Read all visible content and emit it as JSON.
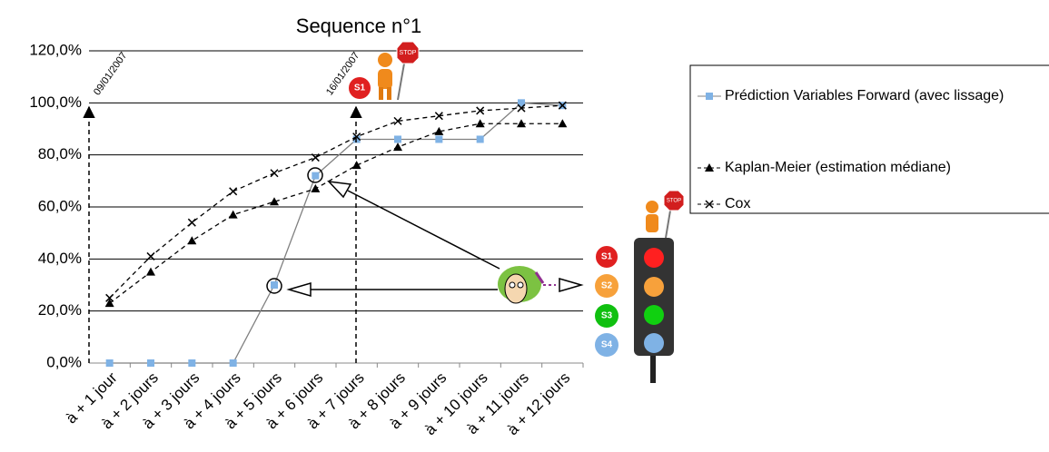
{
  "chart_data": {
    "type": "line",
    "title": "Sequence n°1",
    "categories": [
      "à + 1 jour",
      "à + 2 jours",
      "à + 3 jours",
      "à + 4 jours",
      "à + 5 jours",
      "à + 6 jours",
      "à + 7 jours",
      "à + 8 jours",
      "à + 9 jours",
      "à + 10 jours",
      "à + 11 jours",
      "à + 12 jours"
    ],
    "series": [
      {
        "name": "Prédiction Variables Forward (avec lissage)",
        "color": "#7fb2e5",
        "line_color": "#808080",
        "line_style": "solid",
        "marker": "square",
        "values": [
          0,
          0,
          0,
          0,
          30,
          72,
          86,
          86,
          86,
          86,
          100,
          99
        ]
      },
      {
        "name": "Kaplan-Meier (estimation médiane)",
        "color": "#000000",
        "line_color": "#000000",
        "line_style": "dashed",
        "marker": "triangle",
        "values": [
          23,
          35,
          47,
          57,
          62,
          67,
          76,
          83,
          89,
          92,
          92,
          92
        ]
      },
      {
        "name": "Cox",
        "color": "#000000",
        "line_color": "#000000",
        "line_style": "dashed",
        "marker": "x",
        "values": [
          25,
          41,
          54,
          66,
          73,
          79,
          87,
          93,
          95,
          97,
          98,
          99
        ]
      }
    ],
    "ylim": [
      0,
      120
    ],
    "yticks": [
      {
        "value": 0,
        "label": "0,0%"
      },
      {
        "value": 20,
        "label": "20,0%"
      },
      {
        "value": 40,
        "label": "40,0%"
      },
      {
        "value": 60,
        "label": "60,0%"
      },
      {
        "value": 80,
        "label": "80,0%"
      },
      {
        "value": 100,
        "label": "100,0%"
      },
      {
        "value": 120,
        "label": "120,0%"
      }
    ],
    "grid": true,
    "annotations": {
      "dates": [
        "09/01/2007",
        "16/01/2007"
      ],
      "signals": [
        "S1",
        "S1",
        "S2",
        "S3",
        "S4"
      ],
      "stop": [
        "STOP",
        "STOP"
      ]
    }
  }
}
